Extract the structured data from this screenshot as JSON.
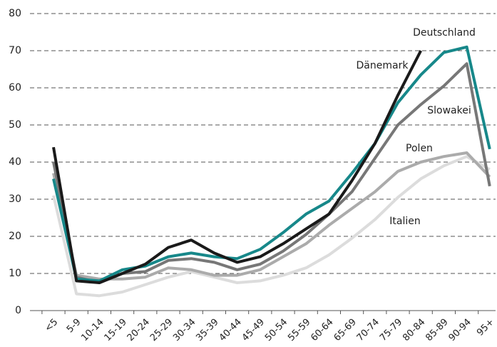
{
  "chart_data": {
    "type": "line",
    "categories": [
      "<5",
      "5-9",
      "10-14",
      "15-19",
      "20-24",
      "25-29",
      "30-34",
      "35-39",
      "40-44",
      "45-49",
      "50-54",
      "55-59",
      "60-64",
      "65-69",
      "70-74",
      "75-79",
      "80-84",
      "85-89",
      "90-94",
      "95+"
    ],
    "series": [
      {
        "name": "Italien",
        "color": "#dcdcdc",
        "values": [
          31,
          4.5,
          4,
          5,
          7,
          9,
          10.5,
          9,
          7.5,
          8,
          9.5,
          11.5,
          15,
          19.5,
          24.5,
          30.5,
          35.5,
          39,
          41.5,
          38
        ]
      },
      {
        "name": "Polen",
        "color": "#ababab",
        "values": [
          37,
          9.5,
          8.5,
          8.5,
          9,
          11.5,
          11,
          9.5,
          9.5,
          11,
          14.5,
          18,
          23,
          27.5,
          32,
          37.5,
          40,
          41.5,
          42.5,
          36
        ]
      },
      {
        "name": "Slowakei",
        "color": "#777777",
        "values": [
          40,
          9,
          7.5,
          10,
          10.5,
          13.5,
          14,
          13,
          11,
          12.5,
          16,
          20.5,
          26,
          32,
          41,
          50,
          55.5,
          60.5,
          66.5,
          33.5
        ]
      },
      {
        "name": "Deutschland",
        "color": "#17888a",
        "values": [
          35.5,
          8.5,
          8,
          11,
          12,
          14.5,
          15.5,
          14.5,
          14,
          16.5,
          21,
          26,
          29.5,
          37,
          45,
          56,
          63.5,
          69.5,
          71,
          43.5
        ]
      },
      {
        "name": "Dänemark",
        "color": "#1a1a1a",
        "values": [
          44,
          8,
          7.5,
          10,
          12.5,
          17,
          19,
          15.5,
          13,
          14.5,
          18,
          22,
          26,
          35,
          45,
          58,
          70,
          null,
          null,
          null
        ]
      }
    ],
    "ylim": [
      0,
      80
    ],
    "yticks": [
      0,
      10,
      20,
      30,
      40,
      50,
      60,
      70,
      80
    ],
    "grid": true
  }
}
